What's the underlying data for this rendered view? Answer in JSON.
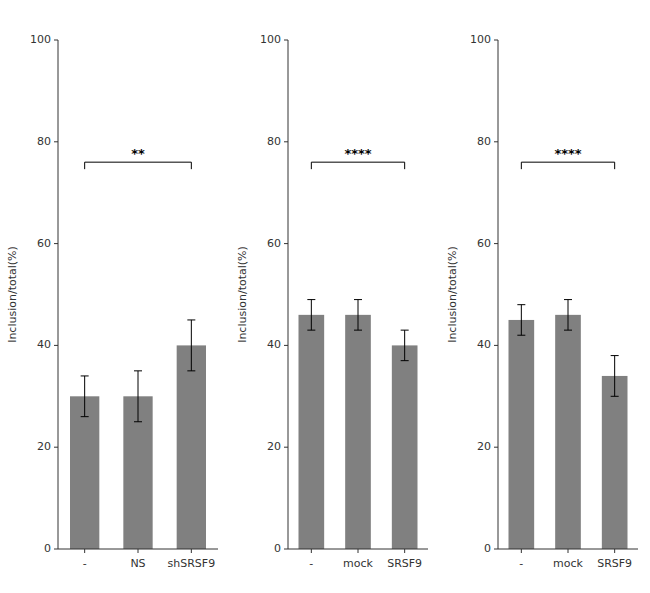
{
  "chart_data": [
    {
      "type": "bar",
      "categories": [
        "-",
        "NS",
        "shSRSF9"
      ],
      "values": [
        30,
        30,
        40
      ],
      "errors": [
        4,
        5,
        5
      ],
      "color": "#808080",
      "ylabel": "Inclusion/total(%)",
      "ylim": [
        0,
        100
      ],
      "yticks": [
        0,
        20,
        40,
        60,
        80,
        100
      ],
      "grid": false,
      "annotations": [
        {
          "text": "**",
          "y": 76
        }
      ]
    },
    {
      "type": "bar",
      "categories": [
        "-",
        "mock",
        "SRSF9"
      ],
      "values": [
        46,
        46,
        40
      ],
      "errors": [
        3,
        3,
        3
      ],
      "color": "#808080",
      "ylabel": "Inclusion/total(%)",
      "ylim": [
        0,
        100
      ],
      "yticks": [
        0,
        20,
        40,
        60,
        80,
        100
      ],
      "grid": false,
      "annotations": [
        {
          "text": "****",
          "y": 76
        }
      ]
    },
    {
      "type": "bar",
      "categories": [
        "-",
        "mock",
        "SRSF9"
      ],
      "values": [
        45,
        46,
        34
      ],
      "errors": [
        3,
        3,
        4
      ],
      "color": "#808080",
      "ylabel": "Inclusion/total(%)",
      "ylim": [
        0,
        100
      ],
      "yticks": [
        0,
        20,
        40,
        60,
        80,
        100
      ],
      "grid": false,
      "annotations": [
        {
          "text": "****",
          "y": 76
        }
      ]
    }
  ]
}
